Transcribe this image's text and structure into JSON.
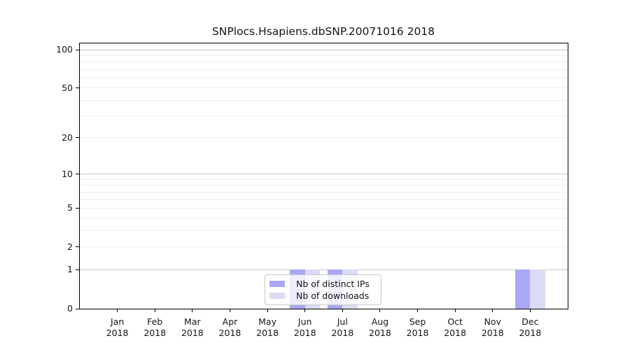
{
  "title": "SNPlocs.Hsapiens.dbSNP.20071016 2018",
  "chart_data": {
    "type": "bar",
    "title": "SNPlocs.Hsapiens.dbSNP.20071016 2018",
    "x_months": [
      "Jan",
      "Feb",
      "Mar",
      "Apr",
      "May",
      "Jun",
      "Jul",
      "Aug",
      "Sep",
      "Oct",
      "Nov",
      "Dec"
    ],
    "x_year": "2018",
    "series": [
      {
        "name": "Nb of distinct IPs",
        "color": "#a8a8f5",
        "values": [
          0,
          0,
          0,
          0,
          0,
          1,
          1,
          0,
          0,
          0,
          0,
          1
        ]
      },
      {
        "name": "Nb of downloads",
        "color": "#dbdbf8",
        "values": [
          0,
          0,
          0,
          0,
          0,
          1,
          1,
          0,
          0,
          0,
          0,
          1
        ]
      }
    ],
    "yscale": "log1p",
    "ylim": [
      0,
      112
    ],
    "ytick_values": [
      0,
      1,
      2,
      5,
      10,
      20,
      50,
      100
    ],
    "ytick_labels": [
      "0",
      "1",
      "2",
      "5",
      "10",
      "20",
      "50",
      "100"
    ],
    "ytick_minor_values": [
      3,
      4,
      6,
      7,
      8,
      9,
      30,
      40,
      60,
      70,
      80,
      90
    ],
    "grid_emphasis_values": [
      1,
      10,
      100
    ],
    "grid": "horizontal",
    "legend_position": "lower center",
    "colors": {
      "grid_major": "#c6c6c6",
      "grid_minor": "#ededed",
      "axis": "#000000",
      "background": "#ffffff"
    }
  }
}
